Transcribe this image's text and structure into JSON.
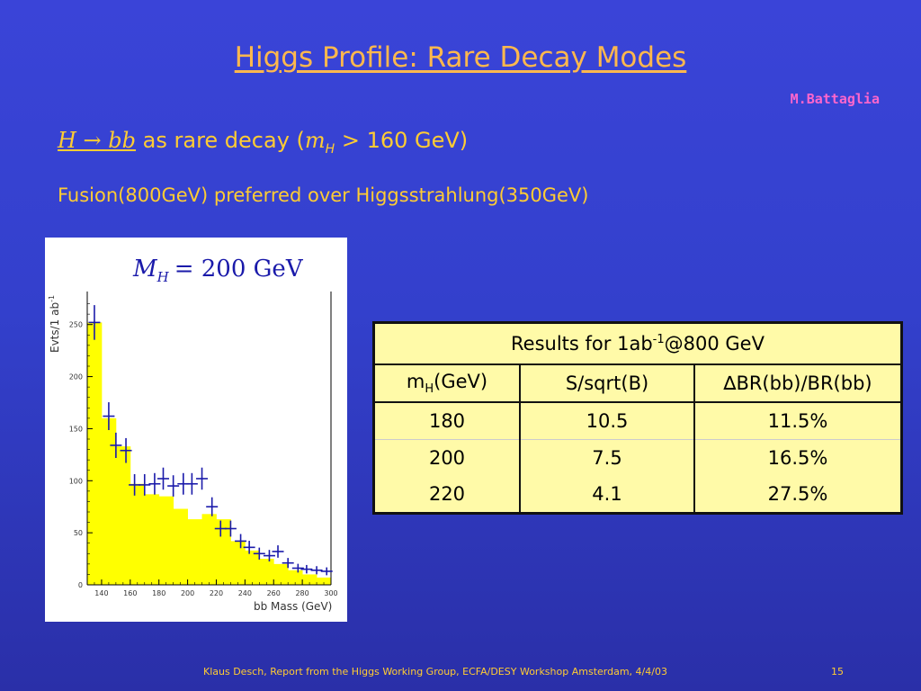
{
  "slide": {
    "title": "Higgs Profile: Rare Decay Modes",
    "author": "M.Battaglia",
    "decay_line": {
      "lhs": "H → bb",
      "middle": " as rare decay (",
      "m": "m",
      "sub": "H",
      "rest": " > 160 GeV)"
    },
    "fusion_text": "Fusion(800GeV) preferred over Higgsstrahlung(350GeV)",
    "footer": "Klaus Desch, Report from the Higgs Working Group, ECFA/DESY Workshop Amsterdam, 4/4/03",
    "page_number": "15"
  },
  "table": {
    "caption_pre": "Results for 1ab",
    "caption_sup": "-1",
    "caption_post": "@800 GeV",
    "col1_main": "m",
    "col1_sub": "H",
    "col1_post": "(GeV)",
    "col2": "S/sqrt(B)",
    "col3": "∆BR(bb)/BR(bb)",
    "rows": [
      {
        "mass": "180",
        "snr": "10.5",
        "dbr": "11.5%"
      },
      {
        "mass": "200",
        "snr": "7.5",
        "dbr": "16.5%"
      },
      {
        "mass": "220",
        "snr": "4.1",
        "dbr": "27.5%"
      }
    ]
  },
  "colors": {
    "fill": "#ffff00",
    "points": "#1a1aaa",
    "accent": "#ffcc33",
    "author": "#ff66cc"
  },
  "chart_data": {
    "type": "bar",
    "title": "M_H = 200 GeV",
    "title_main": "M",
    "title_sub": "H",
    "title_rest": "= 200  GeV",
    "xlabel": "bb Mass (GeV)",
    "ylabel": "Evts/1 ab",
    "ylabel_sup": "-1",
    "xlim": [
      130,
      300
    ],
    "ylim": [
      0,
      280
    ],
    "xticks": [
      "140",
      "160",
      "180",
      "200",
      "220",
      "240",
      "260",
      "280",
      "300"
    ],
    "yticks": [
      "0",
      "50",
      "100",
      "150",
      "200",
      "250"
    ],
    "histogram": {
      "bins": [
        130,
        140,
        150,
        160,
        170,
        180,
        190,
        200,
        210,
        220,
        230,
        240,
        250,
        260,
        270,
        280,
        290,
        300
      ],
      "values": [
        252,
        160,
        133,
        97,
        87,
        85,
        73,
        63,
        68,
        63,
        42,
        33,
        25,
        20,
        14,
        10,
        7
      ]
    },
    "points": {
      "x": [
        135,
        145,
        150,
        157,
        163,
        170,
        177,
        183,
        190,
        197,
        203,
        210,
        217,
        223,
        230,
        237,
        243,
        250,
        257,
        263,
        270,
        277,
        283,
        290,
        297
      ],
      "y": [
        252,
        162,
        134,
        129,
        96,
        96,
        97,
        102,
        95,
        97,
        97,
        102,
        75,
        54,
        54,
        42,
        36,
        30,
        28,
        32,
        21,
        16,
        15,
        14,
        13
      ]
    }
  }
}
